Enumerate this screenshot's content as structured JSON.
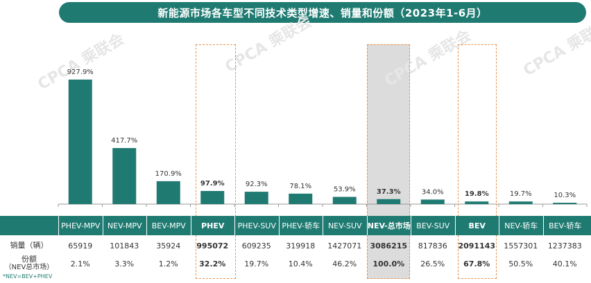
{
  "title": "新能源市场各车型不同技术类型增速、销量和份额（2023年1-6月）",
  "watermark": "CPCA 乘联会",
  "colors": {
    "bar": "#1f7b72",
    "header": "#1f7b72",
    "highlight_border": "#e8914a",
    "nev_shade": "#dcdcdc"
  },
  "table": {
    "row_labels": {
      "sales": "销量（辆）",
      "share_line1": "份额",
      "share_line2": "（NEV总市场）"
    },
    "columns": [
      "PHEV-MPV",
      "NEV-MPV",
      "BEV-MPV",
      "PHEV",
      "PHEV-SUV",
      "PHEV-轿车",
      "NEV-SUV",
      "NEV-总市场",
      "BEV-SUV",
      "BEV",
      "NEV-轿车",
      "BEV-轿车"
    ],
    "sales": [
      "65919",
      "101843",
      "35924",
      "995072",
      "609235",
      "319918",
      "1427071",
      "3086215",
      "817836",
      "2091143",
      "1557301",
      "1237383"
    ],
    "share": [
      "2.1%",
      "3.3%",
      "1.2%",
      "32.2%",
      "19.7%",
      "10.4%",
      "46.2%",
      "100.0%",
      "26.5%",
      "67.8%",
      "50.5%",
      "40.1%"
    ],
    "bold_columns": [
      "PHEV",
      "NEV-总市场",
      "BEV"
    ]
  },
  "footnote": "*NEV=BEV+PHEV",
  "chart_data": {
    "type": "bar",
    "categories": [
      "PHEV-MPV",
      "NEV-MPV",
      "BEV-MPV",
      "PHEV",
      "PHEV-SUV",
      "PHEV-轿车",
      "NEV-SUV",
      "NEV-总市场",
      "BEV-SUV",
      "BEV",
      "NEV-轿车",
      "BEV-轿车"
    ],
    "values": [
      927.9,
      417.7,
      170.9,
      97.9,
      92.3,
      78.1,
      53.9,
      37.3,
      34.0,
      19.8,
      19.7,
      10.3
    ],
    "value_labels": [
      "927.9%",
      "417.7%",
      "170.9%",
      "97.9%",
      "92.3%",
      "78.1%",
      "53.9%",
      "37.3%",
      "34.0%",
      "19.8%",
      "19.7%",
      "10.3%"
    ],
    "bold_labels": [
      "PHEV",
      "NEV-总市场",
      "BEV"
    ],
    "highlighted": [
      "PHEV",
      "NEV-总市场",
      "BEV"
    ],
    "title": "",
    "xlabel": "",
    "ylabel": "",
    "ylim": [
      0,
      1000
    ]
  }
}
